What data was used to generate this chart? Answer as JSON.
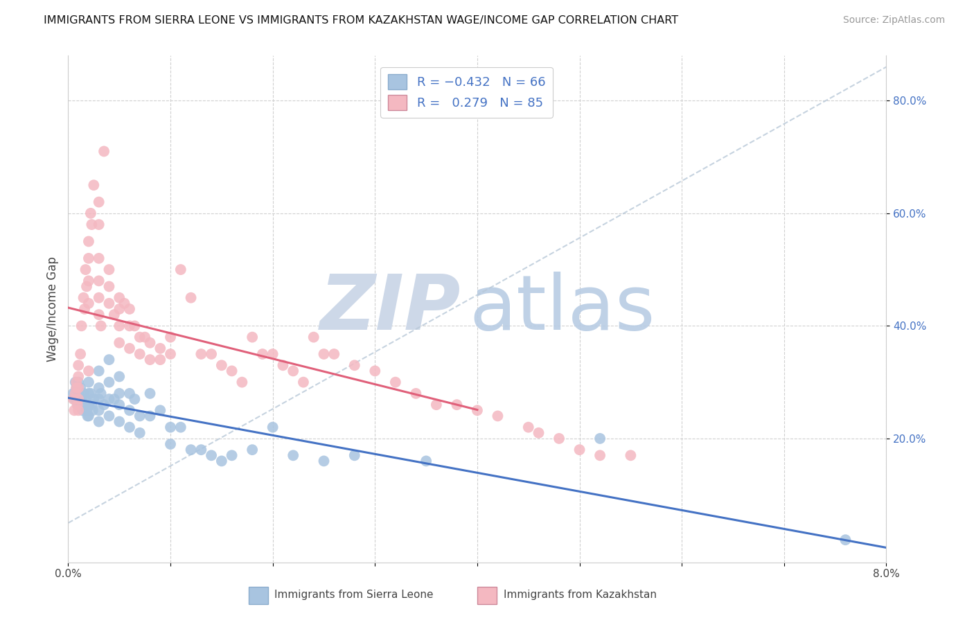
{
  "title": "IMMIGRANTS FROM SIERRA LEONE VS IMMIGRANTS FROM KAZAKHSTAN WAGE/INCOME GAP CORRELATION CHART",
  "source": "Source: ZipAtlas.com",
  "ylabel": "Wage/Income Gap",
  "xlim": [
    0.0,
    0.08
  ],
  "ylim": [
    -0.02,
    0.88
  ],
  "color_blue": "#a8c4e0",
  "color_pink": "#f4b8c1",
  "line_color_blue": "#4472c4",
  "line_color_pink": "#e0607a",
  "text_color": "#4472c4",
  "grid_color": "#d0d0d0",
  "watermark_zip_color": "#cdd8e8",
  "watermark_atlas_color": "#b8cce4",
  "sl_x": [
    0.0005,
    0.0006,
    0.0007,
    0.0008,
    0.0008,
    0.0009,
    0.001,
    0.001,
    0.001,
    0.0012,
    0.0013,
    0.0014,
    0.0015,
    0.0016,
    0.0017,
    0.0018,
    0.0019,
    0.002,
    0.002,
    0.002,
    0.002,
    0.0022,
    0.0023,
    0.0024,
    0.0025,
    0.003,
    0.003,
    0.003,
    0.003,
    0.003,
    0.0032,
    0.0035,
    0.004,
    0.004,
    0.004,
    0.004,
    0.0045,
    0.005,
    0.005,
    0.005,
    0.005,
    0.006,
    0.006,
    0.006,
    0.0065,
    0.007,
    0.007,
    0.008,
    0.008,
    0.009,
    0.01,
    0.01,
    0.011,
    0.012,
    0.013,
    0.014,
    0.015,
    0.016,
    0.018,
    0.02,
    0.022,
    0.025,
    0.028,
    0.035,
    0.052,
    0.076
  ],
  "sl_y": [
    0.28,
    0.27,
    0.3,
    0.29,
    0.27,
    0.26,
    0.3,
    0.28,
    0.26,
    0.29,
    0.27,
    0.25,
    0.28,
    0.26,
    0.27,
    0.25,
    0.24,
    0.3,
    0.28,
    0.26,
    0.24,
    0.28,
    0.26,
    0.25,
    0.27,
    0.32,
    0.29,
    0.27,
    0.25,
    0.23,
    0.28,
    0.26,
    0.34,
    0.3,
    0.27,
    0.24,
    0.27,
    0.31,
    0.28,
    0.26,
    0.23,
    0.28,
    0.25,
    0.22,
    0.27,
    0.24,
    0.21,
    0.28,
    0.24,
    0.25,
    0.22,
    0.19,
    0.22,
    0.18,
    0.18,
    0.17,
    0.16,
    0.17,
    0.18,
    0.22,
    0.17,
    0.16,
    0.17,
    0.16,
    0.2,
    0.02
  ],
  "kz_x": [
    0.0005,
    0.0006,
    0.0007,
    0.0008,
    0.0008,
    0.0009,
    0.001,
    0.001,
    0.001,
    0.001,
    0.001,
    0.0012,
    0.0013,
    0.0015,
    0.0016,
    0.0017,
    0.0018,
    0.002,
    0.002,
    0.002,
    0.002,
    0.002,
    0.0022,
    0.0023,
    0.0025,
    0.003,
    0.003,
    0.003,
    0.003,
    0.003,
    0.003,
    0.0032,
    0.0035,
    0.004,
    0.004,
    0.004,
    0.0045,
    0.005,
    0.005,
    0.005,
    0.005,
    0.0055,
    0.006,
    0.006,
    0.006,
    0.0065,
    0.007,
    0.007,
    0.0075,
    0.008,
    0.008,
    0.009,
    0.009,
    0.01,
    0.01,
    0.011,
    0.012,
    0.013,
    0.014,
    0.015,
    0.016,
    0.017,
    0.018,
    0.019,
    0.02,
    0.021,
    0.022,
    0.023,
    0.024,
    0.025,
    0.026,
    0.028,
    0.03,
    0.032,
    0.034,
    0.036,
    0.038,
    0.04,
    0.042,
    0.045,
    0.046,
    0.048,
    0.05,
    0.052,
    0.055
  ],
  "kz_y": [
    0.27,
    0.25,
    0.28,
    0.29,
    0.3,
    0.26,
    0.33,
    0.31,
    0.29,
    0.27,
    0.25,
    0.35,
    0.4,
    0.45,
    0.43,
    0.5,
    0.47,
    0.55,
    0.52,
    0.48,
    0.44,
    0.32,
    0.6,
    0.58,
    0.65,
    0.62,
    0.58,
    0.52,
    0.48,
    0.45,
    0.42,
    0.4,
    0.71,
    0.5,
    0.47,
    0.44,
    0.42,
    0.45,
    0.43,
    0.4,
    0.37,
    0.44,
    0.43,
    0.4,
    0.36,
    0.4,
    0.38,
    0.35,
    0.38,
    0.37,
    0.34,
    0.36,
    0.34,
    0.38,
    0.35,
    0.5,
    0.45,
    0.35,
    0.35,
    0.33,
    0.32,
    0.3,
    0.38,
    0.35,
    0.35,
    0.33,
    0.32,
    0.3,
    0.38,
    0.35,
    0.35,
    0.33,
    0.32,
    0.3,
    0.28,
    0.26,
    0.26,
    0.25,
    0.24,
    0.22,
    0.21,
    0.2,
    0.18,
    0.17,
    0.17
  ]
}
